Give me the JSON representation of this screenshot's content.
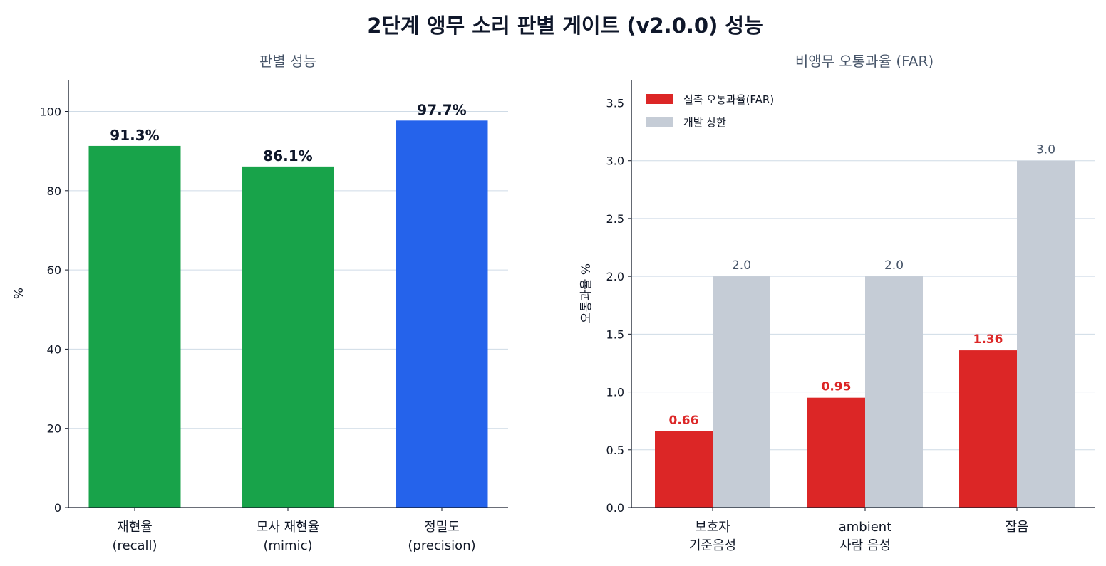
{
  "figure": {
    "title": "2단계 앵무 소리 판별 게이트 (v2.0.0) 성능"
  },
  "colors": {
    "recall": "#18a34a",
    "precision": "#2563eb",
    "far": "#dc2626",
    "limit": "#c5ccd6",
    "grid": "#cfdbe6",
    "axis": "#111827",
    "value_label": "#0f172a",
    "far_label": "#dc2626",
    "limit_label": "#475569"
  },
  "chart_data": [
    {
      "type": "bar",
      "title": "판별 성능",
      "xlabel": "",
      "ylabel": "%",
      "ylim": [
        0,
        108
      ],
      "yticks": [
        0,
        20,
        40,
        60,
        80,
        100
      ],
      "ytick_labels": [
        "0",
        "20",
        "40",
        "60",
        "80",
        "100"
      ],
      "grid": true,
      "categories": [
        [
          "재현율",
          "(recall)"
        ],
        [
          "모사 재현율",
          "(mimic)"
        ],
        [
          "정밀도",
          "(precision)"
        ]
      ],
      "values": [
        91.3,
        86.1,
        97.7
      ],
      "value_labels": [
        "91.3%",
        "86.1%",
        "97.7%"
      ],
      "bar_colors": [
        "recall",
        "recall",
        "precision"
      ]
    },
    {
      "type": "bar",
      "title": "비앵무 오통과율 (FAR)",
      "xlabel": "",
      "ylabel": "오통과율 %",
      "ylim": [
        0,
        3.7
      ],
      "yticks": [
        0,
        0.5,
        1.0,
        1.5,
        2.0,
        2.5,
        3.0,
        3.5
      ],
      "ytick_labels": [
        "0.0",
        "0.5",
        "1.0",
        "1.5",
        "2.0",
        "2.5",
        "3.0",
        "3.5"
      ],
      "grid": true,
      "legend_position": "top-left",
      "categories": [
        [
          "보호자",
          "기준음성"
        ],
        [
          "ambient",
          "사람 음성"
        ],
        [
          "잡음"
        ]
      ],
      "series": [
        {
          "name": "실측 오통과율(FAR)",
          "values": [
            0.66,
            0.95,
            1.36
          ],
          "value_labels": [
            "0.66",
            "0.95",
            "1.36"
          ],
          "color": "far",
          "label_color": "far_label",
          "bold_labels": true
        },
        {
          "name": "개발 상한",
          "values": [
            2.0,
            2.0,
            3.0
          ],
          "value_labels": [
            "2.0",
            "2.0",
            "3.0"
          ],
          "color": "limit",
          "label_color": "limit_label",
          "bold_labels": false
        }
      ]
    }
  ]
}
